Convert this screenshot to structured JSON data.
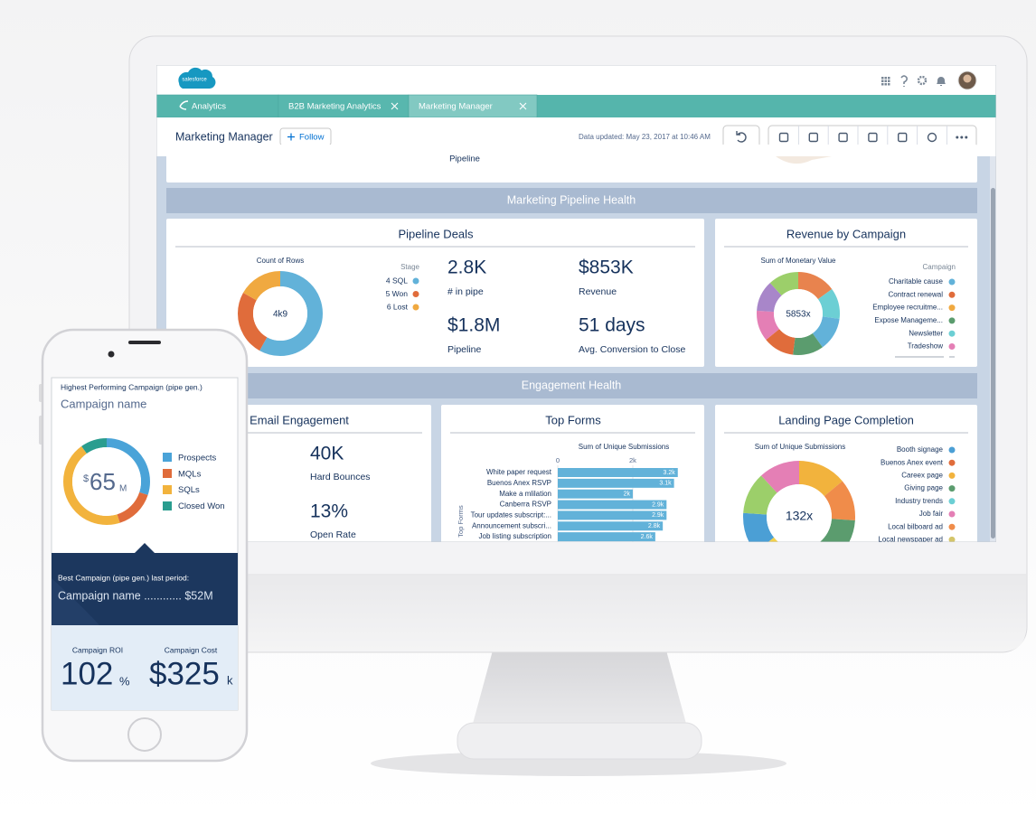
{
  "app": {
    "logo": "salesforce",
    "tabs": [
      "Analytics",
      "B2B Marketing Analytics",
      "Marketing Manager"
    ],
    "page_title": "Marketing Manager",
    "follow": "Follow",
    "updated": "Data updated: May 23, 2017 at 10:46 AM",
    "partial_card_text": "Pipeline",
    "sections": [
      "Marketing Pipeline Health",
      "Engagement Health"
    ],
    "pipeline_deals": {
      "title": "Pipeline Deals",
      "chart_title": "Count of Rows",
      "center": "4k9",
      "legend_title": "Stage",
      "legend": [
        {
          "label": "4 SQL",
          "color": "#62b2d9"
        },
        {
          "label": "5 Won",
          "color": "#e06c3b"
        },
        {
          "label": "6 Lost",
          "color": "#f0a940"
        }
      ],
      "metrics": [
        {
          "value": "2.8K",
          "label": "# in pipe"
        },
        {
          "value": "$853K",
          "label": "Revenue"
        },
        {
          "value": "$1.8M",
          "label": "Pipeline"
        },
        {
          "value": "51 days",
          "label": "Avg. Conversion to Close"
        }
      ]
    },
    "revenue_by_campaign": {
      "title": "Revenue by Campaign",
      "chart_title": "Sum of Monetary Value",
      "center": "5853x",
      "legend_title": "Campaign",
      "legend": [
        {
          "label": "Charitable cause",
          "color": "#62b2d9"
        },
        {
          "label": "Contract renewal",
          "color": "#e06c3b"
        },
        {
          "label": "Employee recruitme...",
          "color": "#f0a940"
        },
        {
          "label": "Expose Manageme...",
          "color": "#5b9c6e"
        },
        {
          "label": "Newsletter",
          "color": "#6ccfd4"
        },
        {
          "label": "Tradeshow",
          "color": "#e47fb5"
        }
      ]
    },
    "email_engagement": {
      "title": "Email Engagement",
      "metrics": [
        {
          "value": "40K",
          "label": "Hard Bounces"
        },
        {
          "value": "13%",
          "label": "Open Rate"
        }
      ]
    },
    "top_forms": {
      "title": "Top Forms",
      "chart_title": "Sum of Unique Submissions",
      "axis_label": "Top Forms",
      "xlim": [
        0,
        3700
      ],
      "xticks": [
        0,
        {
          "value": 2000,
          "label": "2k"
        }
      ],
      "categories": [
        "White paper request",
        "Buenos Anex RSVP",
        "Make a mlilation",
        "Canberra RSVP",
        "Tour updates subscript:...",
        "Announcement subscri...",
        "Job listing subscription"
      ],
      "values": [
        3200,
        3100,
        2000,
        2900,
        2900,
        2800,
        2600
      ],
      "value_labels": [
        "3.2k",
        "3.1k",
        "2k",
        "2.9k",
        "2.9k",
        "2.8k",
        "2.6k"
      ],
      "color": "#62b2d9"
    },
    "landing_page_completion": {
      "title": "Landing Page Completion",
      "chart_title": "Sum of Unique Submissions",
      "center": "132x",
      "legend": [
        {
          "label": "Booth signage",
          "color": "#4b9fd5"
        },
        {
          "label": "Buenos Anex event",
          "color": "#e06c3b"
        },
        {
          "label": "Careex page",
          "color": "#f2b33d"
        },
        {
          "label": "Giving page",
          "color": "#5b9c6e"
        },
        {
          "label": "Industry trends",
          "color": "#6ccfd4"
        },
        {
          "label": "Job fair",
          "color": "#e47fb5"
        },
        {
          "label": "Local bilboard ad",
          "color": "#f08c4a"
        },
        {
          "label": "Local newspaper ad",
          "color": "#d4c56a"
        }
      ]
    }
  },
  "phone": {
    "heading": "Highest Performing Campaign (pipe gen.)",
    "campaign": "Campaign name",
    "center": {
      "currency": "$",
      "value": "65",
      "unit": "M"
    },
    "legend": [
      {
        "label": "Prospects",
        "color": "#4aa3d8"
      },
      {
        "label": "MQLs",
        "color": "#e06c3b"
      },
      {
        "label": "SQLs",
        "color": "#f2b33d"
      },
      {
        "label": "Closed Won",
        "color": "#2a9d8f"
      }
    ],
    "best_label": "Best Campaign (pipe gen.) last period:",
    "best_value": "Campaign name ............ $52M",
    "roi": {
      "label": "Campaign ROI",
      "value": "102",
      "unit": "%"
    },
    "cost": {
      "label": "Campaign Cost",
      "value": "$325",
      "unit": "k"
    }
  }
}
